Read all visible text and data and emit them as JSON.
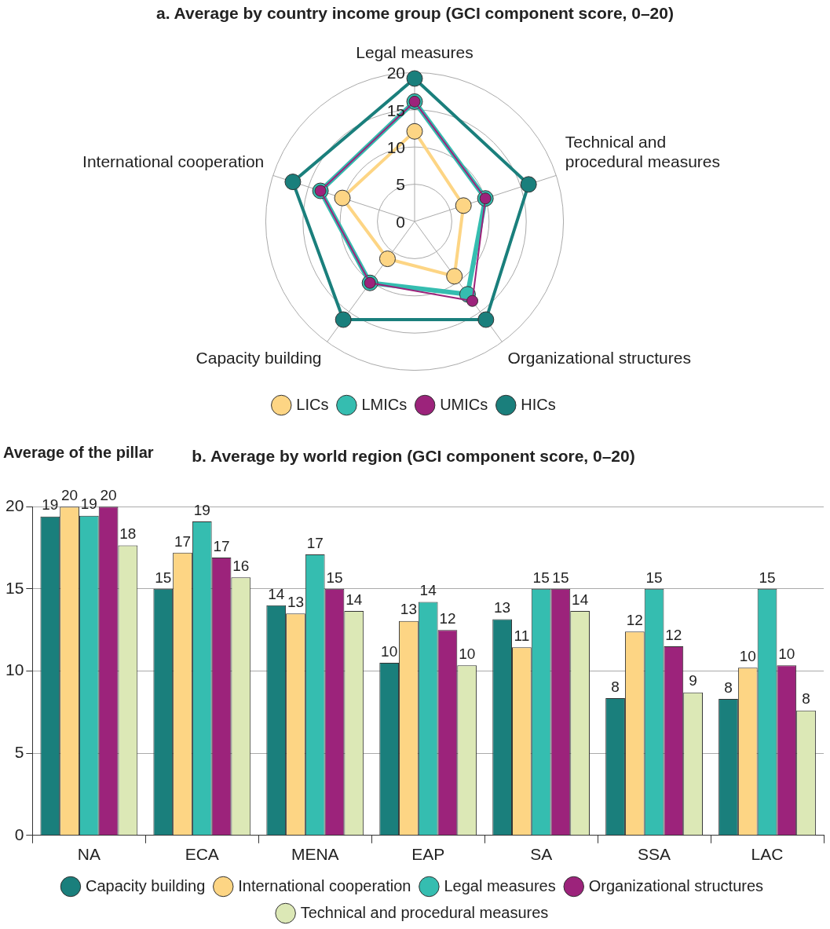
{
  "chart_data": [
    {
      "type": "radar",
      "title": "a. Average by country income group (GCI component score, 0–20)",
      "categories": [
        "Legal measures",
        "Technical and procedural measures",
        "Organizational structures",
        "Capacity building",
        "International cooperation"
      ],
      "ylim": [
        0,
        20
      ],
      "yticks": [
        0,
        5,
        10,
        15,
        20
      ],
      "grid": true,
      "legend": "bottom",
      "marker": "circle",
      "series": [
        {
          "name": "LICs",
          "color": "#fdd584",
          "values": [
            12.1,
            6.9,
            9.1,
            6.2,
            10.2
          ]
        },
        {
          "name": "LMICs",
          "color": "#35bdb0",
          "values": [
            16.1,
            10.0,
            12.1,
            10.2,
            13.3
          ]
        },
        {
          "name": "UMICs",
          "color": "#9c237b",
          "values": [
            16.1,
            10.0,
            13.2,
            10.2,
            13.3
          ]
        },
        {
          "name": "HICs",
          "color": "#1a7f7c",
          "values": [
            19.2,
            16.1,
            16.3,
            16.3,
            17.2
          ]
        }
      ]
    },
    {
      "type": "bar",
      "title": "b. Average by world region (GCI component score, 0–20)",
      "ylabel": "Average of the pillar",
      "categories": [
        "NA",
        "ECA",
        "MENA",
        "EAP",
        "SA",
        "SSA",
        "LAC"
      ],
      "ylim": [
        0,
        20
      ],
      "yticks": [
        0,
        5,
        10,
        15,
        20
      ],
      "grid": "y",
      "legend": "bottom",
      "series": [
        {
          "name": "Capacity building",
          "color": "#1a7f7c",
          "values": [
            19.4,
            15.0,
            14.0,
            10.5,
            13.15,
            8.35,
            8.3
          ],
          "value_labels": [
            "19",
            "15",
            "14",
            "10",
            "13",
            "8",
            "8"
          ]
        },
        {
          "name": "International cooperation",
          "color": "#fdd584",
          "values": [
            20.0,
            17.2,
            13.5,
            13.05,
            11.45,
            12.4,
            10.2
          ],
          "value_labels": [
            "20",
            "17",
            "13",
            "13",
            "11",
            "12",
            "10"
          ]
        },
        {
          "name": "Legal measures",
          "color": "#35bdb0",
          "values": [
            19.45,
            19.1,
            17.1,
            14.2,
            15.0,
            15.0,
            15.0
          ],
          "value_labels": [
            "19",
            "19",
            "17",
            "14",
            "15",
            "15",
            "15"
          ]
        },
        {
          "name": "Organizational structures",
          "color": "#9c237b",
          "values": [
            20.0,
            16.9,
            15.0,
            12.5,
            15.0,
            11.5,
            10.35
          ],
          "value_labels": [
            "20",
            "17",
            "15",
            "12",
            "15",
            "12",
            "10"
          ]
        },
        {
          "name": "Technical and procedural measures",
          "color": "#dce8b6",
          "values": [
            17.65,
            15.7,
            13.65,
            10.35,
            13.65,
            8.7,
            7.6
          ],
          "value_labels": [
            "18",
            "16",
            "14",
            "10",
            "14",
            "9",
            "8"
          ]
        }
      ]
    }
  ]
}
